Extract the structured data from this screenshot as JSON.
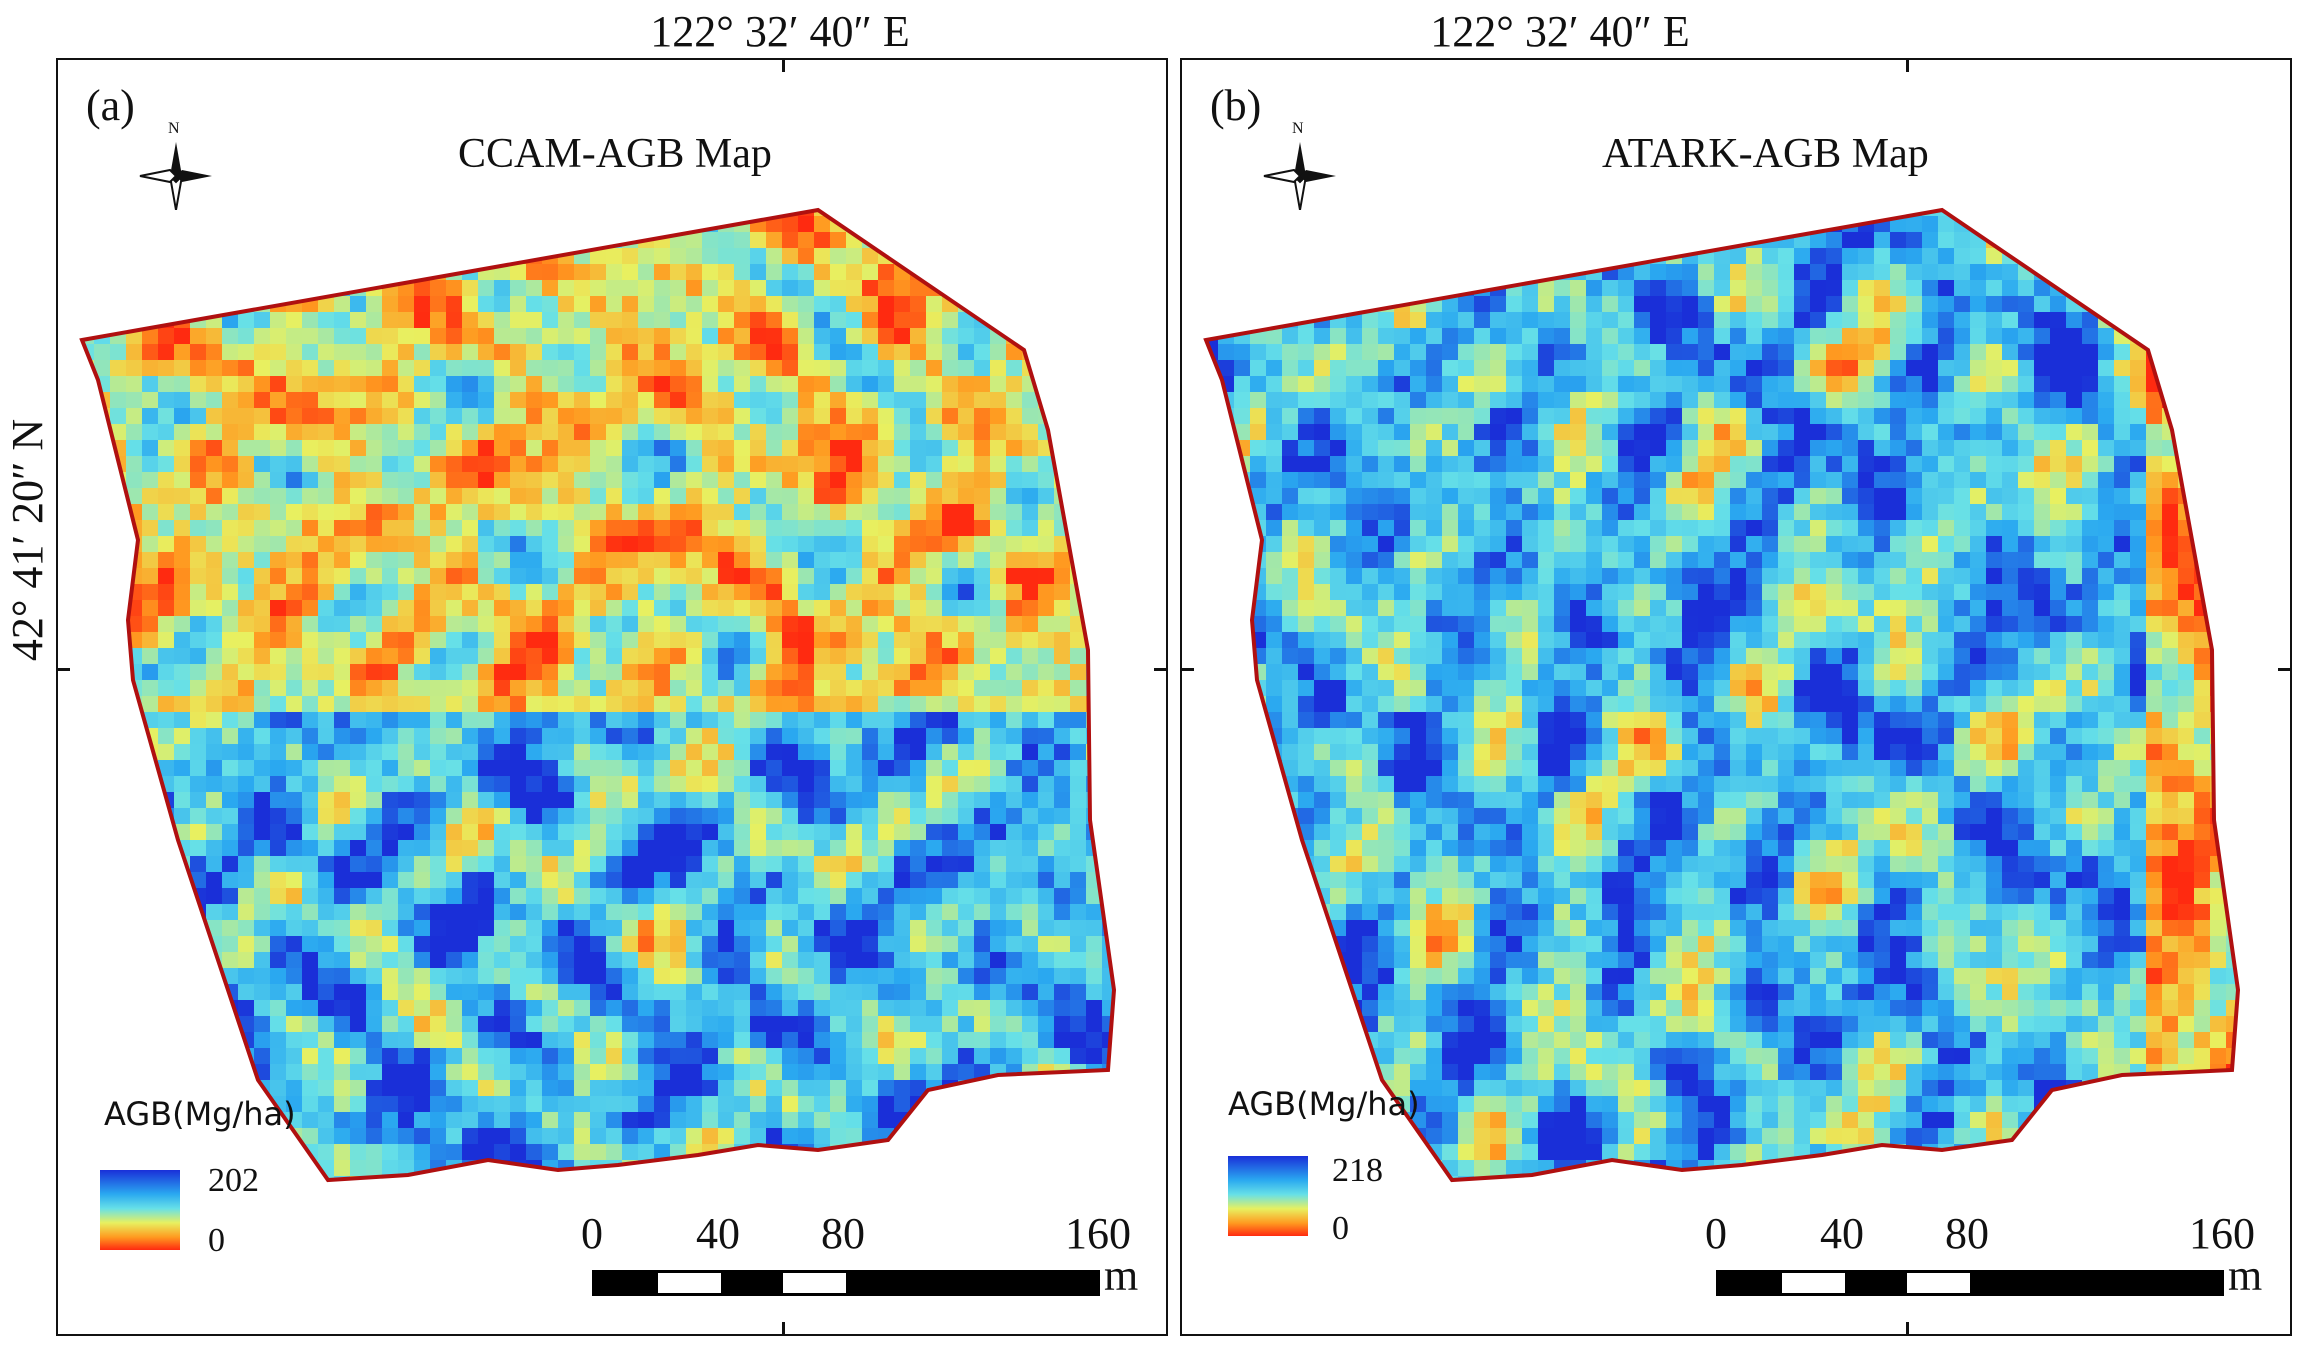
{
  "coordinates": {
    "top_label_a": "122° 32′ 40″ E",
    "top_label_b": "122° 32′ 40″ E",
    "left_label": "42° 41′ 20″ N"
  },
  "panels": [
    {
      "label": "(a)",
      "title": "CCAM-AGB Map",
      "north_label": "N",
      "legend": {
        "title": "AGB(Mg/ha)",
        "max": "202",
        "min": "0"
      },
      "scale": {
        "ticks": [
          "0",
          "40",
          "80",
          "160"
        ],
        "unit": "m"
      }
    },
    {
      "label": "(b)",
      "title": "ATARK-AGB Map",
      "north_label": "N",
      "legend": {
        "title": "AGB(Mg/ha)",
        "max": "218",
        "min": "0"
      },
      "scale": {
        "ticks": [
          "0",
          "40",
          "80",
          "160"
        ],
        "unit": "m"
      }
    }
  ],
  "colors": {
    "boundary": "#b01010",
    "ramp_high": "#1a2fd8",
    "ramp_mid": "#66e0e8",
    "ramp_low": "#ff2a10"
  }
}
